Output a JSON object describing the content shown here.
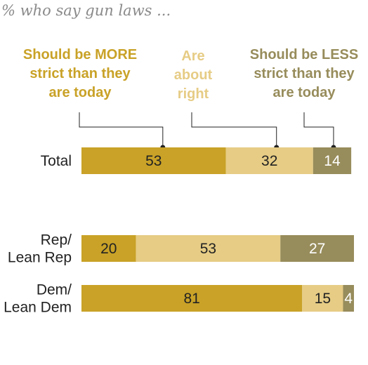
{
  "colors": {
    "more": "#c9a227",
    "right": "#e6cc85",
    "less": "#978c5b",
    "text_dark": "#222222",
    "text_light": "#ffffff"
  },
  "chart_data": {
    "type": "bar",
    "orientation": "horizontal",
    "stacked": true,
    "title": "",
    "subtitle": "% who say gun laws ...",
    "xlim": [
      0,
      100
    ],
    "grid": false,
    "categories": [
      "Total",
      "Rep/\nLean Rep",
      "Dem/\nLean Dem"
    ],
    "series": [
      {
        "name": "Should be MORE strict than they are today",
        "legend_lines": [
          "Should be MORE",
          "strict than they",
          "are today"
        ],
        "values": [
          53,
          20,
          81
        ]
      },
      {
        "name": "Are about right",
        "legend_lines": [
          "Are",
          "about",
          "right"
        ],
        "values": [
          32,
          53,
          15
        ]
      },
      {
        "name": "Should be LESS strict than they are today",
        "legend_lines": [
          "Should be LESS",
          "strict than they",
          "are today"
        ],
        "values": [
          14,
          27,
          4
        ]
      }
    ]
  }
}
